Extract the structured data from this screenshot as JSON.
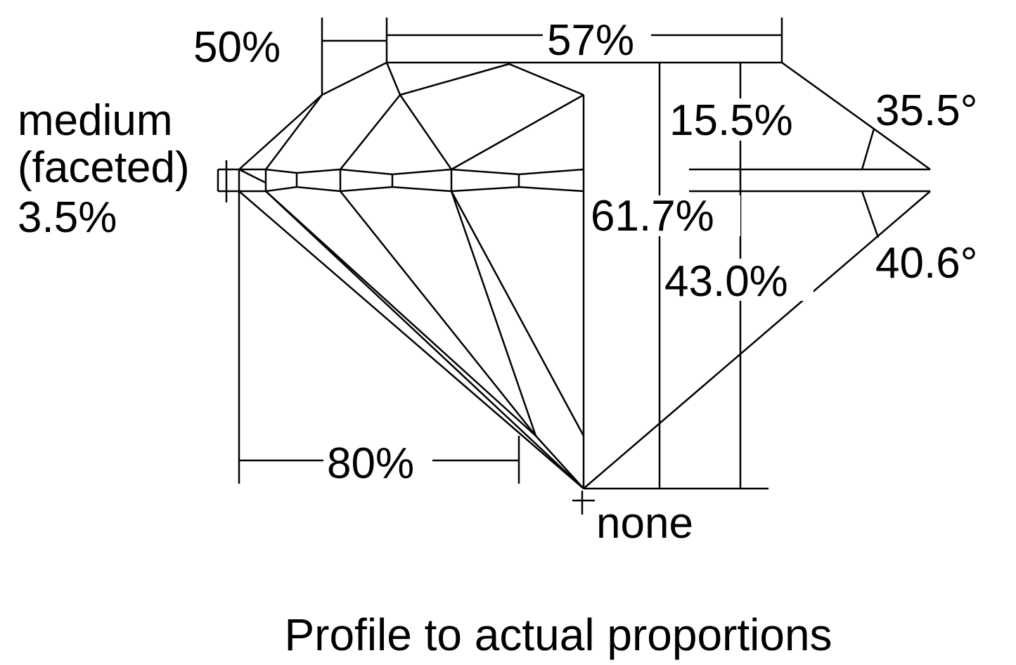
{
  "labels": {
    "crown_height_side": "50%",
    "table": "57%",
    "girdle_line1": "medium",
    "girdle_line2": "(faceted)",
    "girdle_line3": "3.5%",
    "crown_height": "15.5%",
    "crown_angle": "35.5°",
    "total_depth": "61.7%",
    "pavilion_depth": "43.0%",
    "pavilion_angle": "40.6°",
    "lower_half": "80%",
    "culet": "none"
  },
  "caption": "Profile to actual proportions"
}
